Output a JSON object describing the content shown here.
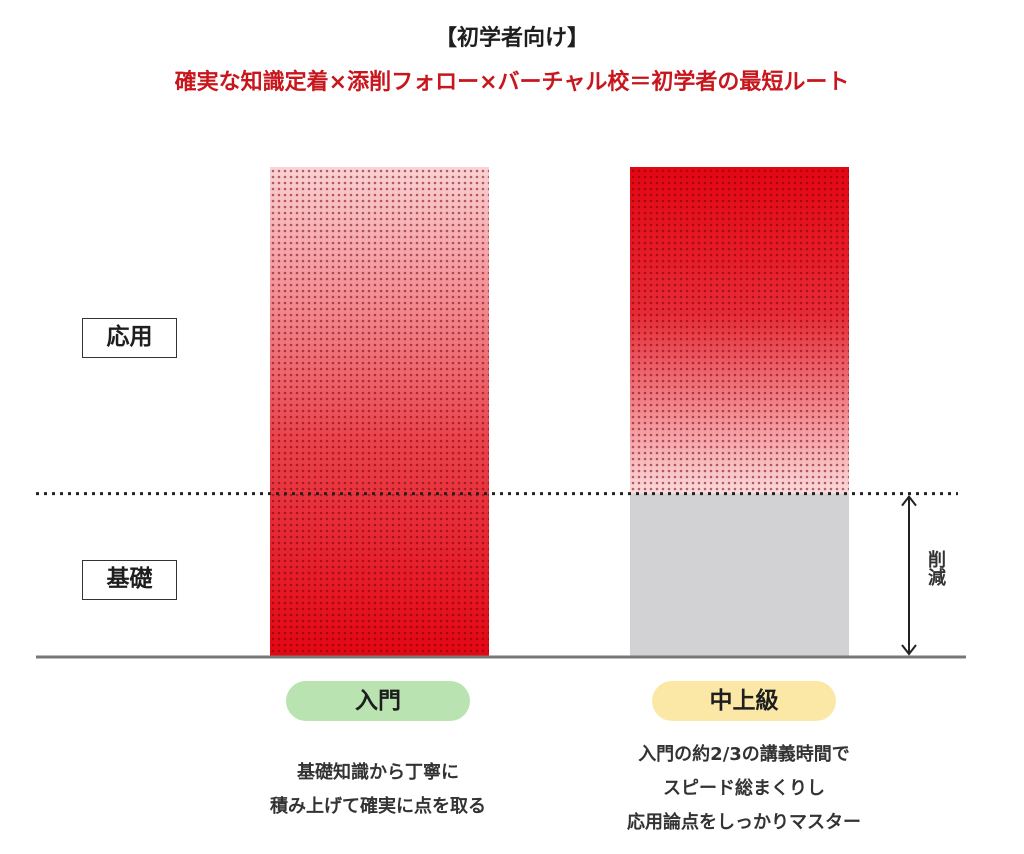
{
  "header": {
    "label": "【初学者向け】",
    "title": "確実な知識定着×添削フォロー×バーチャル校＝初学者の最短ルート"
  },
  "levels": {
    "applied": "応用",
    "basic": "基礎"
  },
  "reduction_label": "削減",
  "courses": [
    {
      "name": "入門",
      "description": [
        "基礎知識から丁寧に",
        "積み上げて確実に点を取る"
      ],
      "pill_color": "#b9e3b0"
    },
    {
      "name": "中上級",
      "description": [
        "入門の約2/3の講義時間で",
        "スピード総まくりし",
        "応用論点をしっかりマスター"
      ],
      "pill_color": "#fbe8a6"
    }
  ],
  "colors": {
    "accent_red": "#c8161d",
    "bar_red": "#e30613",
    "removed_gray": "#d2d2d4"
  },
  "chart_data": {
    "type": "bar",
    "stacked": true,
    "categories": [
      "入門",
      "中上級"
    ],
    "series": [
      {
        "name": "基礎",
        "values": [
          1,
          0
        ],
        "removed": [
          0,
          1
        ]
      },
      {
        "name": "応用",
        "values": [
          2,
          2
        ]
      }
    ],
    "ylim": [
      0,
      3
    ],
    "grid": false,
    "divider": {
      "style": "dotted",
      "at": 1
    },
    "legend": "left"
  }
}
